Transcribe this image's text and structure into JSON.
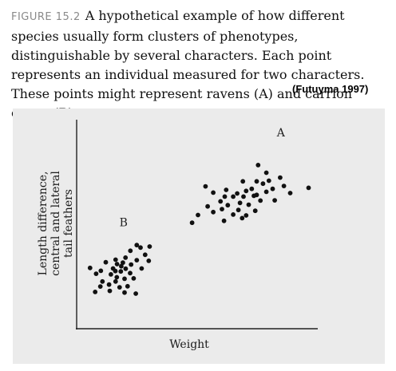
{
  "figure": {
    "label": "FIGURE 15.2",
    "caption": "A hypothetical example of how different species usually form clusters of phenotypes, distinguishable by several characters. Each point represents an individual measured for two characters. These points might represent ravens (A) and carrion crows (B).",
    "credit": "(Futuyma 1997)"
  },
  "colors": {
    "panel_background": "#ebebeb",
    "axis": "#222222",
    "points": "#111111"
  },
  "chart_data": {
    "type": "scatter",
    "title": "",
    "xlabel": "Weight",
    "ylabel": [
      "Length difference,",
      "central and lateral",
      "tail feathers"
    ],
    "xlim": [
      0,
      100
    ],
    "ylim": [
      0,
      100
    ],
    "grid": false,
    "legend": "none",
    "annotations": [
      {
        "text": "A",
        "x": 87,
        "y": 92
      },
      {
        "text": "B",
        "x": 20,
        "y": 49
      }
    ],
    "series": [
      {
        "name": "A",
        "points": [
          [
            77.3,
            78.3
          ],
          [
            80.8,
            74.6
          ],
          [
            86.7,
            72.3
          ],
          [
            81.9,
            70.8
          ],
          [
            70.8,
            70.5
          ],
          [
            76.7,
            70.5
          ],
          [
            79.4,
            69.4
          ],
          [
            88.3,
            68.3
          ],
          [
            54.9,
            68.1
          ],
          [
            74.6,
            66.9
          ],
          [
            83.5,
            66.9
          ],
          [
            63.7,
            66.4
          ],
          [
            72.2,
            65.9
          ],
          [
            80.8,
            65.5
          ],
          [
            58.2,
            65.1
          ],
          [
            91.0,
            64.9
          ],
          [
            68.4,
            64.7
          ],
          [
            76.7,
            64.0
          ],
          [
            75.5,
            63.6
          ],
          [
            98.8,
            67.4
          ],
          [
            63.1,
            63.2
          ],
          [
            66.7,
            63.2
          ],
          [
            71.1,
            63.2
          ],
          [
            78.3,
            61.3
          ],
          [
            84.4,
            61.4
          ],
          [
            61.3,
            60.9
          ],
          [
            69.6,
            60.2
          ],
          [
            73.3,
            59.3
          ],
          [
            64.4,
            59.1
          ],
          [
            55.8,
            58.5
          ],
          [
            61.9,
            57.2
          ],
          [
            68.9,
            56.8
          ],
          [
            76.1,
            56.4
          ],
          [
            58.2,
            55.8
          ],
          [
            66.7,
            54.6
          ],
          [
            72.2,
            54.2
          ],
          [
            51.7,
            54.4
          ],
          [
            62.8,
            51.6
          ],
          [
            70.5,
            52.9
          ],
          [
            49.2,
            50.7
          ]
        ]
      },
      {
        "name": "B",
        "points": [
          [
            25.6,
            40.0
          ],
          [
            31.1,
            39.3
          ],
          [
            27.2,
            38.8
          ],
          [
            22.9,
            37.3
          ],
          [
            29.2,
            35.4
          ],
          [
            20.8,
            34.0
          ],
          [
            16.6,
            33.0
          ],
          [
            25.6,
            32.8
          ],
          [
            30.7,
            32.5
          ],
          [
            19.7,
            31.6
          ],
          [
            12.4,
            31.8
          ],
          [
            17.2,
            30.9
          ],
          [
            23.2,
            30.7
          ],
          [
            19.0,
            29.9
          ],
          [
            15.5,
            28.8
          ],
          [
            20.9,
            28.7
          ],
          [
            27.7,
            28.8
          ],
          [
            5.7,
            29.1
          ],
          [
            16.5,
            27.6
          ],
          [
            18.8,
            27.4
          ],
          [
            10.3,
            27.7
          ],
          [
            22.8,
            26.6
          ],
          [
            14.6,
            26.0
          ],
          [
            8.3,
            26.3
          ],
          [
            17.1,
            24.6
          ],
          [
            24.3,
            24.1
          ],
          [
            20.4,
            23.9
          ],
          [
            11.0,
            22.6
          ],
          [
            16.6,
            22.6
          ],
          [
            13.8,
            21.1
          ],
          [
            21.7,
            20.3
          ],
          [
            10.1,
            20.2
          ],
          [
            18.3,
            19.8
          ],
          [
            14.1,
            18.1
          ],
          [
            7.9,
            17.6
          ],
          [
            20.4,
            17.3
          ],
          [
            25.2,
            16.8
          ]
        ]
      }
    ]
  }
}
